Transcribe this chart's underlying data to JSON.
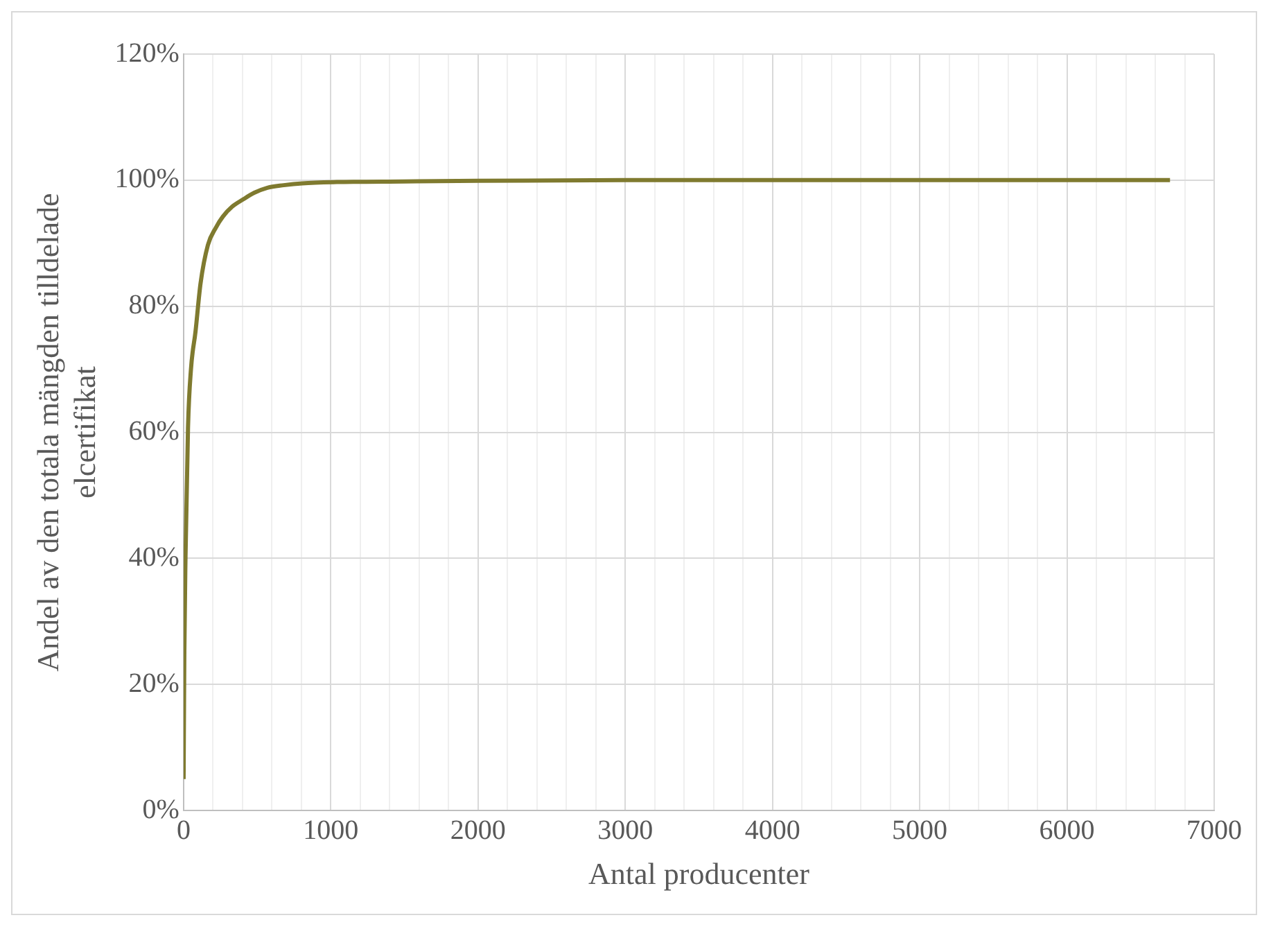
{
  "chart_data": {
    "type": "line",
    "xlabel": "Antal producenter",
    "ylabel": "Andel av den totala mängden tilldelade elcertifikat",
    "x": [
      0,
      5,
      13,
      30,
      50,
      81,
      115,
      165,
      220,
      266,
      330,
      401,
      480,
      569,
      680,
      806,
      1041,
      1500,
      2000,
      3000,
      4000,
      5000,
      6000,
      6700
    ],
    "series": [
      {
        "color": "#7f7a2f",
        "values": [
          5,
          25,
          40.3,
          60.8,
          70,
          76,
          83.6,
          89.7,
          92.5,
          94.2,
          95.8,
          96.9,
          98,
          98.8,
          99.2,
          99.5,
          99.7,
          99.8,
          99.9,
          100,
          100,
          100,
          100,
          100
        ]
      }
    ],
    "xlim": [
      0,
      7000
    ],
    "xticks": [
      0,
      {
        "value": 200,
        "label": null
      },
      {
        "value": 400,
        "label": null
      },
      {
        "value": 600,
        "label": null
      },
      {
        "value": 800,
        "label": null
      },
      1000,
      {
        "value": 1200,
        "label": null
      },
      {
        "value": 1400,
        "label": null
      },
      {
        "value": 1600,
        "label": null
      },
      {
        "value": 1800,
        "label": null
      },
      2000,
      {
        "value": 2200,
        "label": null
      },
      {
        "value": 2400,
        "label": null
      },
      {
        "value": 2600,
        "label": null
      },
      {
        "value": 2800,
        "label": null
      },
      3000,
      {
        "value": 3200,
        "label": null
      },
      {
        "value": 3400,
        "label": null
      },
      {
        "value": 3600,
        "label": null
      },
      {
        "value": 3800,
        "label": null
      },
      4000,
      {
        "value": 4200,
        "label": null
      },
      {
        "value": 4400,
        "label": null
      },
      {
        "value": 4600,
        "label": null
      },
      {
        "value": 4800,
        "label": null
      },
      5000,
      {
        "value": 5200,
        "label": null
      },
      {
        "value": 5400,
        "label": null
      },
      {
        "value": 5600,
        "label": null
      },
      {
        "value": 5800,
        "label": null
      },
      6000,
      {
        "value": 6200,
        "label": null
      },
      {
        "value": 6400,
        "label": null
      },
      {
        "value": 6600,
        "label": null
      },
      {
        "value": 6800,
        "label": null
      },
      7000
    ],
    "ylim": [
      0,
      120
    ],
    "yticks": [
      {
        "value": 0,
        "label": "0%"
      },
      {
        "value": 20,
        "label": "20%"
      },
      {
        "value": 40,
        "label": "40%"
      },
      {
        "value": 60,
        "label": "60%"
      },
      {
        "value": 80,
        "label": "80%"
      },
      {
        "value": 100,
        "label": "100%"
      },
      {
        "value": 120,
        "label": "120%"
      }
    ],
    "grid": true,
    "marker": "none",
    "line_style": "solid"
  }
}
